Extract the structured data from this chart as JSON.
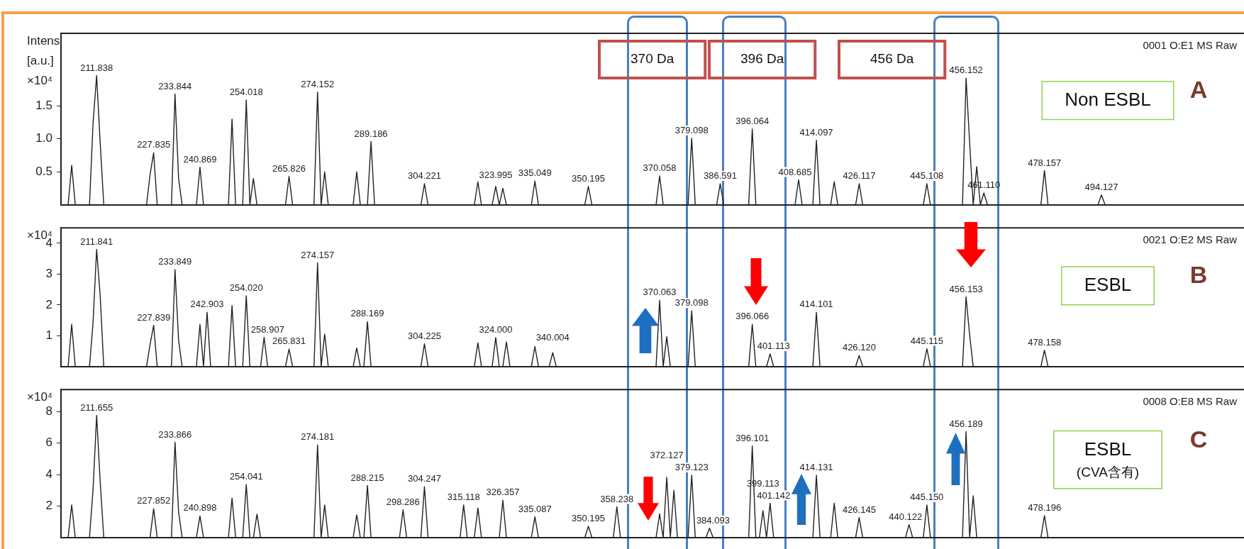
{
  "chart_data": [
    {
      "type": "line",
      "ylabel": "Intens [a.u.] ×10⁴",
      "ylim": [
        0,
        2.6
      ],
      "yticks": [
        {
          "value": 0.5,
          "label": "0.5"
        },
        {
          "value": 1,
          "label": "1.0"
        },
        {
          "value": 1.5,
          "label": "1.5"
        }
      ],
      "tick_labels": "y",
      "legend": false,
      "categories": [
        null,
        null,
        null,
        null,
        null,
        null,
        null,
        null,
        null,
        null,
        null,
        null,
        null,
        null,
        null,
        null,
        null,
        null,
        null,
        null,
        null,
        null,
        null,
        null,
        null,
        null,
        null,
        null,
        null,
        null,
        null,
        null,
        null,
        null,
        null,
        null,
        null,
        null,
        null,
        null,
        null,
        null,
        null,
        null,
        null,
        null,
        null,
        null,
        null,
        null,
        null,
        null,
        null,
        null,
        null,
        null,
        null,
        null,
        null,
        null,
        null,
        null,
        null,
        null,
        null,
        null,
        null,
        null,
        null,
        null,
        null,
        null,
        null,
        null,
        null,
        null,
        null,
        null,
        null,
        null,
        null,
        null,
        null,
        null,
        null,
        null,
        null,
        null,
        null,
        null,
        null,
        null,
        null,
        null,
        null,
        null,
        null,
        null,
        null,
        null,
        null,
        null,
        null,
        null,
        null,
        null,
        null,
        null,
        null,
        null,
        null,
        null,
        null,
        null,
        null,
        null,
        null,
        null,
        null,
        null,
        null,
        null,
        null,
        null,
        null,
        null,
        null,
        null,
        null,
        null,
        null,
        null,
        null,
        null,
        null,
        null,
        null,
        null,
        null,
        null,
        null,
        null,
        null,
        null,
        null,
        null,
        null,
        null,
        null,
        null,
        null,
        null,
        null,
        null,
        null,
        null,
        null,
        null,
        null,
        null,
        null,
        null,
        null,
        null,
        null,
        null,
        null,
        null,
        null,
        null,
        null,
        null,
        null,
        null,
        null,
        null,
        null,
        null,
        null,
        null,
        null,
        null,
        null,
        null,
        null,
        null,
        null,
        null,
        null,
        null,
        null,
        null,
        null,
        null,
        null,
        null,
        null,
        null,
        null,
        null,
        null,
        null,
        null,
        null,
        null,
        null,
        null,
        null,
        null,
        null,
        null,
        null,
        null,
        null,
        null,
        null,
        null,
        null,
        null,
        null,
        null,
        null,
        null,
        null,
        null,
        null,
        null,
        null,
        null,
        null,
        null,
        null,
        null,
        null,
        null,
        null,
        null,
        null,
        null,
        null,
        null,
        null,
        null,
        null,
        null,
        null,
        null,
        null,
        null,
        null,
        null,
        null,
        null,
        null,
        null,
        null,
        null,
        null,
        null,
        null,
        null,
        null,
        null,
        null,
        null,
        null,
        null,
        null,
        null,
        null,
        null,
        null,
        null,
        null,
        null,
        null,
        null,
        null,
        null,
        null,
        null,
        null,
        null,
        null,
        null,
        null,
        null,
        null,
        null,
        null,
        null,
        null,
        null,
        null,
        null,
        null,
        null,
        null,
        null,
        null,
        null,
        null,
        null,
        null,
        null,
        null,
        null,
        null,
        null,
        null,
        null,
        null,
        null,
        null,
        null,
        null,
        null,
        null,
        null,
        null,
        null,
        null,
        null,
        null,
        null,
        null,
        null,
        null,
        null,
        null,
        null,
        null,
        null
      ],
      "series": [
        {
          "color": "#222222",
          "values": [
            0,
            0,
            0,
            0.6,
            0,
            0,
            0,
            0,
            0,
            1.24,
            1.96,
            0.94,
            0,
            0,
            0,
            0,
            0,
            0,
            0,
            0,
            0,
            0,
            0,
            0,
            0,
            0.46,
            0.79,
            0,
            0,
            0,
            0,
            0,
            1.68,
            0.4,
            0,
            0,
            0,
            0,
            0,
            0.57,
            0,
            0,
            0,
            0,
            0,
            0,
            0,
            0,
            1.3,
            0,
            0,
            0,
            1.59,
            0,
            0.4,
            0,
            0,
            0,
            0,
            0,
            0,
            0,
            0,
            0,
            0.43,
            0,
            0,
            0,
            0,
            0,
            0,
            0,
            1.71,
            0,
            0.5,
            0,
            0,
            0,
            0,
            0,
            0,
            0,
            0,
            0.5,
            0,
            0,
            0,
            0.96,
            0,
            0,
            0,
            0,
            0,
            0,
            0,
            0,
            0,
            0,
            0,
            0,
            0,
            0,
            0.32,
            0,
            0,
            0,
            0,
            0,
            0,
            0,
            0,
            0,
            0,
            0,
            0,
            0,
            0,
            0.35,
            0,
            0,
            0,
            0,
            0.28,
            0,
            0.25,
            0,
            0,
            0,
            0,
            0,
            0,
            0,
            0,
            0.36,
            0,
            0,
            0,
            0,
            0,
            0,
            0,
            0,
            0,
            0,
            0,
            0,
            0,
            0,
            0.28,
            0,
            0,
            0,
            0,
            0,
            0,
            0,
            0,
            0,
            0,
            0,
            0,
            0,
            0,
            0,
            0,
            0,
            0,
            0,
            0.44,
            0,
            0,
            0,
            0,
            0,
            0,
            0,
            0,
            1.01,
            0,
            0,
            0,
            0,
            0,
            0,
            0,
            0.32,
            0,
            0,
            0,
            0,
            0,
            0,
            0,
            0,
            1.15,
            0,
            0,
            0,
            0,
            0,
            0,
            0,
            0,
            0,
            0,
            0,
            0,
            0.38,
            0,
            0,
            0,
            0,
            0.98,
            0,
            0,
            0,
            0,
            0.35,
            0,
            0,
            0,
            0,
            0,
            0,
            0.32,
            0,
            0,
            0,
            0,
            0,
            0,
            0,
            0,
            0,
            0,
            0,
            0,
            0,
            0,
            0,
            0,
            0,
            0,
            0.32,
            0,
            0,
            0,
            0,
            0,
            0,
            0,
            0,
            0,
            0,
            1.92,
            0.95,
            0,
            0.58,
            0,
            0.18,
            0,
            0,
            0,
            0,
            0,
            0,
            0,
            0,
            0,
            0,
            0,
            0,
            0,
            0,
            0,
            0,
            0.52,
            0,
            0,
            0,
            0,
            0,
            0,
            0,
            0,
            0,
            0,
            0,
            0,
            0,
            0,
            0,
            0.15,
            0,
            0,
            0,
            0,
            0,
            0,
            0,
            0,
            0,
            0,
            0,
            0,
            0,
            0,
            0,
            0,
            0,
            0,
            0,
            0,
            0,
            0,
            0,
            0,
            0,
            0,
            0,
            0,
            0,
            0,
            0,
            0,
            0,
            0,
            0,
            0,
            0,
            0,
            0,
            0
          ]
        }
      ],
      "annotations": [
        "0001 O:E1 MS Raw",
        "370 Da",
        "396 Da",
        "456 Da",
        "Non ESBL",
        "A",
        {
          "text": "211.838",
          "y": 1.96
        },
        {
          "text": "227.835",
          "y": 0.79
        },
        {
          "text": "233.844",
          "y": 1.68
        },
        {
          "text": "240.869",
          "y": 0.57
        },
        {
          "text": "254.018",
          "y": 1.59
        },
        {
          "text": "265.826",
          "y": 0.43
        },
        {
          "text": "274.152",
          "y": 1.71
        },
        {
          "text": "289.186",
          "y": 0.96
        },
        {
          "text": "304.221",
          "y": 0.32
        },
        {
          "text": "323.995",
          "y": 0.28
        },
        {
          "text": "335.049",
          "y": 0.36
        },
        {
          "text": "350.195",
          "y": 0.28
        },
        {
          "text": "370.058",
          "y": 0.44
        },
        {
          "text": "379.098",
          "y": 1.01
        },
        {
          "text": "386.591",
          "y": 0.32
        },
        {
          "text": "396.064",
          "y": 1.15
        },
        {
          "text": "408.685",
          "y": 0.38
        },
        {
          "text": "414.097",
          "y": 0.98
        },
        {
          "text": "426.117",
          "y": 0.32
        },
        {
          "text": "445.108",
          "y": 0.32
        },
        {
          "text": "456.152",
          "y": 1.92
        },
        {
          "text": "461.110",
          "y": 0.18
        },
        {
          "text": "478.157",
          "y": 0.52
        },
        {
          "text": "494.127",
          "y": 0.15
        }
      ]
    },
    {
      "type": "line",
      "ylabel": "×10⁴",
      "ylim": [
        0,
        4.5
      ],
      "yticks": [
        1,
        2,
        3,
        4
      ],
      "tick_labels": "y",
      "legend": false,
      "categories": [
        null,
        null,
        null,
        null,
        null,
        null,
        null,
        null,
        null,
        null,
        null,
        null,
        null,
        null,
        null,
        null,
        null,
        null,
        null,
        null,
        null,
        null,
        null,
        null,
        null,
        null,
        null,
        null,
        null,
        null,
        null,
        null,
        null,
        null,
        null,
        null,
        null,
        null,
        null,
        null,
        null,
        null,
        null,
        null,
        null,
        null,
        null,
        null,
        null,
        null,
        null,
        null,
        null,
        null,
        null,
        null,
        null,
        null,
        null,
        null,
        null,
        null,
        null,
        null,
        null,
        null,
        null,
        null,
        null,
        null,
        null,
        null,
        null,
        null,
        null,
        null,
        null,
        null,
        null,
        null,
        null,
        null,
        null,
        null,
        null,
        null,
        null,
        null,
        null,
        null,
        null,
        null,
        null,
        null,
        null,
        null,
        null,
        null,
        null,
        null,
        null,
        null,
        null,
        null,
        null,
        null,
        null,
        null,
        null,
        null,
        null,
        null,
        null,
        null,
        null,
        null,
        null,
        null,
        null,
        null,
        null,
        null,
        null,
        null,
        null,
        null,
        null,
        null,
        null,
        null,
        null,
        null,
        null,
        null,
        null,
        null,
        null,
        null,
        null,
        null,
        null,
        null,
        null,
        null,
        null,
        null,
        null,
        null,
        null,
        null,
        null,
        null,
        null,
        null,
        null,
        null,
        null,
        null,
        null,
        null,
        null,
        null,
        null,
        null,
        null,
        null,
        null,
        null,
        null,
        null,
        null,
        null,
        null,
        null,
        null,
        null,
        null,
        null,
        null,
        null,
        null,
        null,
        null,
        null,
        null,
        null,
        null,
        null,
        null,
        null,
        null,
        null,
        null,
        null,
        null,
        null,
        null,
        null,
        null,
        null,
        null,
        null,
        null,
        null,
        null,
        null,
        null,
        null,
        null,
        null,
        null,
        null,
        null,
        null,
        null,
        null,
        null,
        null,
        null,
        null,
        null,
        null,
        null,
        null,
        null,
        null,
        null,
        null,
        null,
        null,
        null,
        null,
        null,
        null,
        null,
        null,
        null,
        null,
        null,
        null,
        null,
        null,
        null,
        null,
        null,
        null,
        null,
        null,
        null,
        null,
        null,
        null,
        null,
        null,
        null,
        null,
        null,
        null,
        null,
        null,
        null,
        null,
        null,
        null,
        null,
        null,
        null,
        null,
        null,
        null,
        null,
        null,
        null,
        null,
        null,
        null,
        null,
        null,
        null,
        null,
        null,
        null,
        null,
        null,
        null,
        null,
        null,
        null,
        null,
        null,
        null,
        null,
        null,
        null,
        null,
        null,
        null,
        null,
        null,
        null,
        null,
        null,
        null,
        null,
        null,
        null,
        null,
        null,
        null,
        null,
        null,
        null,
        null,
        null,
        null,
        null,
        null,
        null,
        null,
        null,
        null,
        null,
        null,
        null,
        null,
        null,
        null,
        null,
        null,
        null,
        null,
        null,
        null
      ],
      "series": [
        {
          "color": "#222222",
          "values": [
            0,
            0,
            0,
            1.37,
            0,
            0,
            0,
            0,
            0,
            1.43,
            3.8,
            2.3,
            0,
            0,
            0,
            0,
            0,
            0,
            0,
            0,
            0,
            0,
            0,
            0,
            0,
            0.72,
            1.34,
            0,
            0,
            0,
            0,
            0,
            3.14,
            0.86,
            0,
            0,
            0,
            0,
            0,
            1.37,
            0,
            1.76,
            0,
            0,
            0,
            0,
            0,
            0,
            1.98,
            0,
            0,
            0,
            2.3,
            0,
            0,
            0,
            0,
            0.95,
            0,
            0,
            0,
            0,
            0,
            0,
            0.57,
            0,
            0,
            0,
            0,
            0,
            0,
            0,
            3.36,
            0,
            1.05,
            0,
            0,
            0,
            0,
            0,
            0,
            0,
            0,
            0.6,
            0,
            0,
            1.46,
            0,
            0,
            0,
            0,
            0,
            0,
            0,
            0,
            0,
            0,
            0,
            0,
            0,
            0,
            0,
            0.74,
            0,
            0,
            0,
            0,
            0,
            0,
            0,
            0,
            0,
            0,
            0,
            0,
            0,
            0,
            0.77,
            0,
            0,
            0,
            0,
            0.94,
            0,
            0,
            0.8,
            0,
            0,
            0,
            0,
            0,
            0,
            0,
            0.65,
            0,
            0,
            0,
            0,
            0.45,
            0,
            0,
            0,
            0,
            0,
            0,
            0,
            0,
            0,
            0,
            0,
            0,
            0,
            0,
            0,
            0,
            0,
            0,
            0,
            0,
            0,
            0,
            0,
            0,
            0,
            0,
            0,
            0,
            0,
            2.15,
            0,
            0.97,
            0,
            0,
            0,
            0,
            0,
            0,
            1.81,
            0,
            0,
            0,
            0,
            0,
            0,
            0,
            0,
            0,
            0,
            0,
            0,
            0,
            0,
            0,
            0,
            1.37,
            0,
            0,
            0,
            0,
            0.41,
            0,
            0,
            0,
            0,
            0,
            0,
            0,
            0,
            0,
            0,
            0,
            0,
            1.76,
            0,
            0,
            0,
            0,
            0,
            0,
            0,
            0,
            0,
            0,
            0,
            0.36,
            0,
            0,
            0,
            0,
            0,
            0,
            0,
            0,
            0,
            0,
            0,
            0,
            0,
            0,
            0,
            0,
            0,
            0,
            0.58,
            0,
            0,
            0,
            0,
            0,
            0,
            0,
            0,
            0,
            0,
            2.26,
            1.03,
            0,
            0,
            0,
            0,
            0,
            0,
            0,
            0,
            0,
            0,
            0,
            0,
            0,
            0,
            0,
            0,
            0,
            0,
            0,
            0,
            0.53,
            0,
            0,
            0,
            0,
            0,
            0,
            0,
            0,
            0,
            0,
            0,
            0,
            0,
            0,
            0,
            0,
            0,
            0,
            0,
            0,
            0,
            0,
            0,
            0,
            0,
            0,
            0,
            0,
            0,
            0,
            0,
            0,
            0,
            0,
            0,
            0,
            0,
            0,
            0,
            0,
            0,
            0,
            0,
            0,
            0,
            0,
            0,
            0,
            0,
            0,
            0,
            0,
            0,
            0,
            0,
            0
          ]
        }
      ],
      "annotations": [
        "0021 O:E2 MS Raw",
        "ESBL",
        "B",
        {
          "text": "211.841",
          "y": 3.8
        },
        {
          "text": "227.839",
          "y": 1.34
        },
        {
          "text": "233.849",
          "y": 3.14
        },
        {
          "text": "242.903",
          "y": 1.76
        },
        {
          "text": "254.020",
          "y": 2.3
        },
        {
          "text": "258.907",
          "y": 0.95
        },
        {
          "text": "265.831",
          "y": 0.57
        },
        {
          "text": "274.157",
          "y": 3.36
        },
        {
          "text": "288.169",
          "y": 1.46
        },
        {
          "text": "304.225",
          "y": 0.74
        },
        {
          "text": "324.000",
          "y": 0.94
        },
        {
          "text": "340.004",
          "y": 0.45
        },
        {
          "text": "370.063",
          "y": 2.15
        },
        {
          "text": "379.098",
          "y": 1.81
        },
        {
          "text": "396.066",
          "y": 1.37
        },
        {
          "text": "401.113",
          "y": 0.41
        },
        {
          "text": "414.101",
          "y": 1.76
        },
        {
          "text": "426.120",
          "y": 0.36
        },
        {
          "text": "445.115",
          "y": 0.58
        },
        {
          "text": "456.153",
          "y": 2.26
        },
        {
          "text": "478.158",
          "y": 0.53
        }
      ]
    },
    {
      "type": "line",
      "ylabel": "×10⁴",
      "ylim": [
        0,
        9.4
      ],
      "yticks": [
        2,
        4,
        6,
        8
      ],
      "tick_labels": "y",
      "legend": false,
      "categories": [
        null,
        null,
        null,
        null,
        null,
        null,
        null,
        null,
        null,
        null,
        null,
        null,
        null,
        null,
        null,
        null,
        null,
        null,
        null,
        null,
        null,
        null,
        null,
        null,
        null,
        null,
        null,
        null,
        null,
        null,
        null,
        null,
        null,
        null,
        null,
        null,
        null,
        null,
        null,
        null,
        null,
        null,
        null,
        null,
        null,
        null,
        null,
        null,
        null,
        null,
        null,
        null,
        null,
        null,
        null,
        null,
        null,
        null,
        null,
        null,
        null,
        null,
        null,
        null,
        null,
        null,
        null,
        null,
        null,
        null,
        null,
        null,
        null,
        null,
        null,
        null,
        null,
        null,
        null,
        null,
        null,
        null,
        null,
        null,
        null,
        null,
        null,
        null,
        null,
        null,
        null,
        null,
        null,
        null,
        null,
        null,
        null,
        null,
        null,
        null,
        null,
        null,
        null,
        null,
        null,
        null,
        null,
        null,
        null,
        null,
        null,
        null,
        null,
        null,
        null,
        null,
        null,
        null,
        null,
        null,
        null,
        null,
        null,
        null,
        null,
        null,
        null,
        null,
        null,
        null,
        null,
        null,
        null,
        null,
        null,
        null,
        null,
        null,
        null,
        null,
        null,
        null,
        null,
        null,
        null,
        null,
        null,
        null,
        null,
        null,
        null,
        null,
        null,
        null,
        null,
        null,
        null,
        null,
        null,
        null,
        null,
        null,
        null,
        null,
        null,
        null,
        null,
        null,
        null,
        null,
        null,
        null,
        null,
        null,
        null,
        null,
        null,
        null,
        null,
        null,
        null,
        null,
        null,
        null,
        null,
        null,
        null,
        null,
        null,
        null,
        null,
        null,
        null,
        null,
        null,
        null,
        null,
        null,
        null,
        null,
        null,
        null,
        null,
        null,
        null,
        null,
        null,
        null,
        null,
        null,
        null,
        null,
        null,
        null,
        null,
        null,
        null,
        null,
        null,
        null,
        null,
        null,
        null,
        null,
        null,
        null,
        null,
        null,
        null,
        null,
        null,
        null,
        null,
        null,
        null,
        null,
        null,
        null,
        null,
        null,
        null,
        null,
        null,
        null,
        null,
        null,
        null,
        null,
        null,
        null,
        null,
        null,
        null,
        null,
        null,
        null,
        null,
        null,
        null,
        null,
        null,
        null,
        null,
        null,
        null,
        null,
        null,
        null,
        null,
        null,
        null,
        null,
        null,
        null,
        null,
        null,
        null,
        null,
        null,
        null,
        null,
        null,
        null,
        null,
        null,
        null,
        null,
        null,
        null,
        null,
        null,
        null,
        null,
        null,
        null,
        null,
        null,
        null,
        null,
        null,
        null,
        null,
        null,
        null,
        null,
        null,
        null,
        null,
        null,
        null,
        null,
        null,
        null,
        null,
        null,
        null,
        null,
        null,
        null,
        null,
        null,
        null,
        null,
        null,
        null,
        null,
        null,
        null,
        null,
        null,
        null,
        null,
        null
      ],
      "series": [
        {
          "color": "#222222",
          "values": [
            0,
            0,
            0,
            2.07,
            0,
            0,
            0,
            0,
            0,
            3.07,
            7.76,
            3.54,
            0,
            0,
            0,
            0,
            0,
            0,
            0,
            0,
            0,
            0,
            0,
            0,
            0,
            0,
            1.83,
            0,
            0,
            0,
            0,
            0,
            6.05,
            1.64,
            0,
            0,
            0,
            0,
            0,
            1.37,
            0,
            0,
            0,
            0,
            0,
            0,
            0,
            0,
            2.51,
            0,
            0,
            0,
            3.36,
            0,
            0,
            1.48,
            0,
            0,
            0,
            0,
            0,
            0,
            0,
            0,
            0,
            0,
            0,
            0,
            0,
            0,
            0,
            0,
            5.88,
            0,
            2.07,
            0,
            0,
            0,
            0,
            0,
            0,
            0,
            0,
            1.44,
            0,
            0,
            3.3,
            0,
            0,
            0,
            0,
            0,
            0,
            0,
            0,
            0,
            1.76,
            0,
            0,
            0,
            0,
            0,
            3.23,
            0,
            0,
            0,
            0,
            0,
            0,
            0,
            0,
            0,
            0,
            2.07,
            0,
            0,
            0,
            1.88,
            0,
            0,
            0,
            0,
            0,
            0,
            2.37,
            0,
            0,
            0,
            0,
            0,
            0,
            0,
            0,
            1.32,
            0,
            0,
            0,
            0,
            0,
            0,
            0,
            0,
            0,
            0,
            0,
            0,
            0,
            0,
            0.71,
            0,
            0,
            0,
            0,
            0,
            0,
            0,
            1.95,
            0,
            0,
            0,
            0,
            0,
            0,
            0,
            0,
            0,
            0,
            0,
            1.5,
            0,
            3.82,
            0,
            3.0,
            0,
            0,
            0,
            0,
            3.96,
            0,
            0,
            0,
            0,
            0.59,
            0,
            0,
            0,
            0,
            0,
            0,
            0,
            0,
            0,
            0,
            0,
            5.82,
            0,
            0,
            1.7,
            0,
            2.18,
            0,
            0,
            0,
            0,
            0,
            0,
            0,
            0,
            0,
            0,
            0,
            0,
            3.96,
            0,
            0,
            0,
            0,
            2.18,
            0,
            0,
            0,
            0,
            0,
            0,
            1.27,
            0,
            0,
            0,
            0,
            0,
            0,
            0,
            0,
            0,
            0,
            0,
            0,
            0,
            0.82,
            0,
            0,
            0,
            0,
            2.07,
            0,
            0,
            0,
            0,
            0,
            0,
            0,
            0,
            0,
            0,
            6.73,
            0,
            2.65,
            0,
            0,
            0,
            0,
            0,
            0,
            0,
            0,
            0,
            0,
            0,
            0,
            0,
            0,
            0,
            0,
            0,
            0,
            0,
            1.39,
            0,
            0,
            0,
            0,
            0,
            0,
            0,
            0,
            0,
            0,
            0,
            0,
            0,
            0,
            0,
            0,
            0,
            0,
            0,
            0,
            0,
            0,
            0,
            0,
            0,
            0,
            0,
            0,
            0,
            0,
            0,
            0,
            0,
            0,
            0,
            0,
            0,
            0,
            0,
            0,
            0,
            0,
            0,
            0,
            0,
            0,
            0,
            0,
            0,
            0,
            0,
            0,
            0,
            0,
            0,
            0
          ]
        }
      ],
      "annotations": [
        "0008 O:E8 MS Raw",
        "ESBL",
        "(CVA含有)",
        "C",
        {
          "text": "211.655",
          "y": 7.76
        },
        {
          "text": "227.852",
          "y": 1.83
        },
        {
          "text": "233.866",
          "y": 6.05
        },
        {
          "text": "240.898",
          "y": 1.37
        },
        {
          "text": "254.041",
          "y": 3.36
        },
        {
          "text": "274.181",
          "y": 5.88
        },
        {
          "text": "288.215",
          "y": 3.3
        },
        {
          "text": "298.286",
          "y": 1.76
        },
        {
          "text": "304.247",
          "y": 3.23
        },
        {
          "text": "315.118",
          "y": 2.07
        },
        {
          "text": "326.357",
          "y": 2.37
        },
        {
          "text": "335.087",
          "y": 1.32
        },
        {
          "text": "350.195",
          "y": 0.71
        },
        {
          "text": "358.238",
          "y": 1.95
        },
        {
          "text": "372.127",
          "y": 3.82
        },
        {
          "text": "379.123",
          "y": 3.96
        },
        {
          "text": "384.093",
          "y": 0.59
        },
        {
          "text": "396.101",
          "y": 5.82
        },
        {
          "text": "399.113",
          "y": 1.7
        },
        {
          "text": "401.142",
          "y": 2.18
        },
        {
          "text": "414.131",
          "y": 3.96
        },
        {
          "text": "426.145",
          "y": 1.27
        },
        {
          "text": "440.122",
          "y": 0.82
        },
        {
          "text": "445.150",
          "y": 2.07
        },
        {
          "text": "456.189",
          "y": 6.73
        },
        {
          "text": "478.196",
          "y": 1.39
        }
      ]
    }
  ]
}
